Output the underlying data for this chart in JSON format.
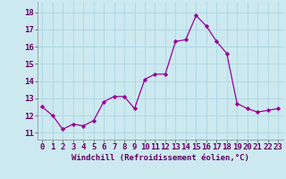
{
  "x": [
    0,
    1,
    2,
    3,
    4,
    5,
    6,
    7,
    8,
    9,
    10,
    11,
    12,
    13,
    14,
    15,
    16,
    17,
    18,
    19,
    20,
    21,
    22,
    23
  ],
  "y": [
    12.5,
    12.0,
    11.2,
    11.5,
    11.4,
    11.7,
    12.8,
    13.1,
    13.1,
    12.4,
    14.1,
    14.4,
    14.4,
    16.3,
    16.4,
    17.8,
    17.2,
    16.3,
    15.6,
    12.7,
    12.4,
    12.2,
    12.3,
    12.4
  ],
  "line_color": "#990099",
  "marker": "D",
  "marker_size": 2.2,
  "line_width": 0.9,
  "xlabel": "Windchill (Refroidissement éolien,°C)",
  "xlabel_fontsize": 6.5,
  "background_color": "#cce9f0",
  "grid_color": "#b0d8e4",
  "tick_label_fontsize": 6.5,
  "ytick_min": 11,
  "ytick_max": 18,
  "ytick_step": 1,
  "xlim": [
    -0.5,
    23.5
  ],
  "ylim": [
    10.6,
    18.6
  ]
}
